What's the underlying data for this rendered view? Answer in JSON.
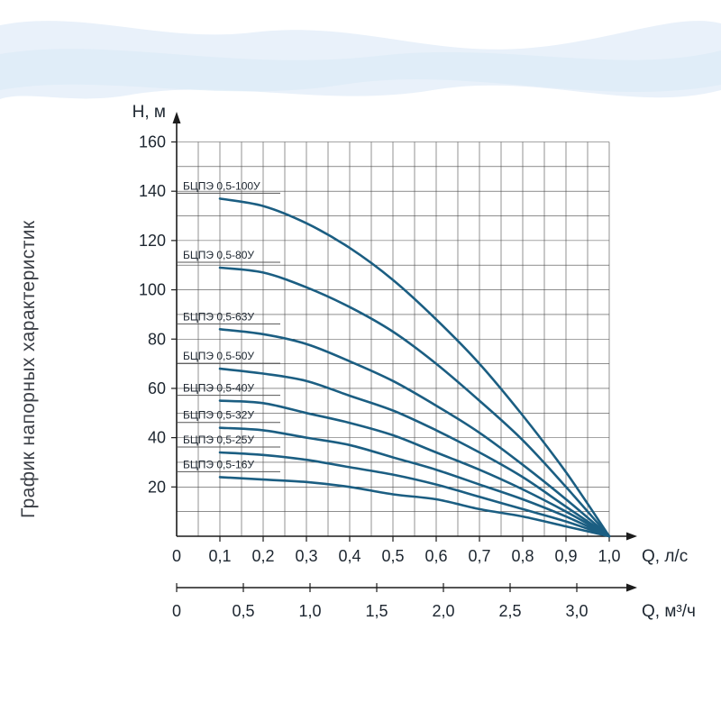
{
  "colors": {
    "curve": "#1b5e82",
    "axis": "#1c1c1c",
    "grid": "#4a4a4a",
    "text": "#1d2630",
    "leader": "#555555",
    "wave1": "#e9f1fa",
    "wave2": "#dcebf7"
  },
  "chart_data": {
    "type": "line",
    "title": "График напорных характеристик",
    "ylabel": "H, м",
    "xlabel": "Q, л/с",
    "xlabel2": "Q, м³/ч",
    "xlim": [
      0,
      1.0
    ],
    "ylim": [
      0,
      160
    ],
    "grid": true,
    "legend_position": "curve-start-labels",
    "x_tick_labels": [
      "0",
      "0,1",
      "0,2",
      "0,3",
      "0,4",
      "0,5",
      "0,6",
      "0,7",
      "0,8",
      "0,9",
      "1,0"
    ],
    "y_tick_labels": [
      "20",
      "40",
      "60",
      "80",
      "100",
      "120",
      "140",
      "160"
    ],
    "x2_tick_labels": [
      "0",
      "0,5",
      "1,0",
      "1,5",
      "2,0",
      "2,5",
      "3,0"
    ],
    "x": [
      0.1,
      0.2,
      0.3,
      0.4,
      0.5,
      0.6,
      0.7,
      0.8,
      0.9,
      1.0
    ],
    "series": [
      {
        "name": "БЦПЭ 0,5-100У",
        "values": [
          137,
          134,
          127,
          117,
          104,
          88,
          70,
          49,
          26,
          0
        ]
      },
      {
        "name": "БЦПЭ 0,5-80У",
        "values": [
          109,
          107,
          101,
          93,
          83,
          70,
          55,
          39,
          20,
          0
        ]
      },
      {
        "name": "БЦПЭ 0,5-63У",
        "values": [
          84,
          82,
          78,
          71,
          63,
          53,
          42,
          29,
          15,
          0
        ]
      },
      {
        "name": "БЦПЭ 0,5-50У",
        "values": [
          68,
          66,
          63,
          57,
          51,
          43,
          34,
          24,
          12,
          0
        ]
      },
      {
        "name": "БЦПЭ 0,5-40У",
        "values": [
          55,
          54,
          50,
          46,
          41,
          34,
          27,
          19,
          10,
          0
        ]
      },
      {
        "name": "БЦПЭ 0,5-32У",
        "values": [
          44,
          43,
          40,
          37,
          32,
          27,
          21,
          15,
          8,
          0
        ]
      },
      {
        "name": "БЦПЭ 0,5-25У",
        "values": [
          34,
          33,
          31,
          28,
          25,
          21,
          16,
          11,
          6,
          0
        ]
      },
      {
        "name": "БЦПЭ 0,5-16У",
        "values": [
          24,
          23,
          22,
          20,
          17,
          15,
          11,
          8,
          4,
          0
        ]
      }
    ]
  }
}
